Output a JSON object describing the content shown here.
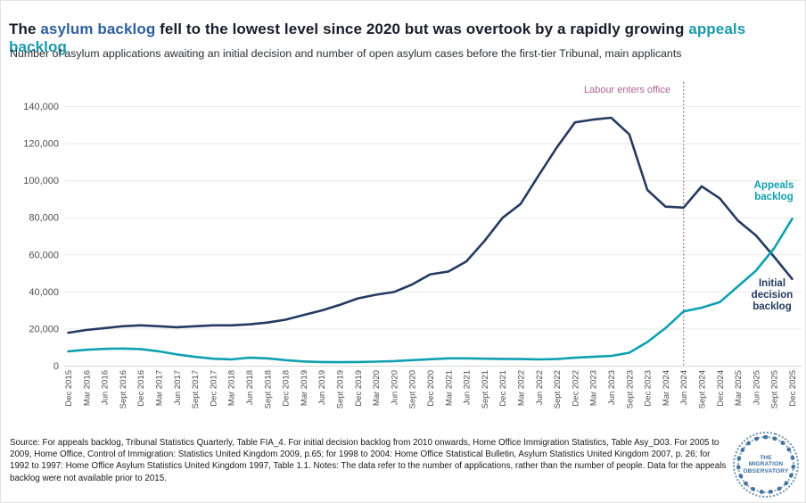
{
  "header": {
    "title_parts": [
      {
        "text": "The ",
        "style": "dark"
      },
      {
        "text": "asylum backlog",
        "style": "blue"
      },
      {
        "text": " fell to the lowest level since 2020 but was overtook by a rapidly growing ",
        "style": "dark"
      },
      {
        "text": "appeals backlog",
        "style": "teal"
      }
    ],
    "subtitle": "Number of asylum applications awaiting an initial decision and number of open asylum cases before the first-tier Tribunal, main applicants"
  },
  "chart_data": {
    "type": "line",
    "x": [
      "Dec 2015",
      "Mar 2016",
      "Jun 2016",
      "Sept 2016",
      "Dec 2016",
      "Mar 2017",
      "Jun 2017",
      "Sept 2017",
      "Dec 2017",
      "Mar 2018",
      "Jun 2018",
      "Sept 2018",
      "Dec 2018",
      "Mar 2019",
      "Jun 2019",
      "Sept 2019",
      "Dec 2019",
      "Mar 2020",
      "Jun 2020",
      "Sept 2020",
      "Dec 2020",
      "Mar 2021",
      "Jun 2021",
      "Sept 2021",
      "Dec 2021",
      "Mar 2022",
      "Jun 2022",
      "Sept 2022",
      "Dec 2022",
      "Mar 2023",
      "Jun 2023",
      "Sept 2023",
      "Dec 2023",
      "Mar 2024",
      "Jun 2024",
      "Sept 2024",
      "Dec 2024",
      "Mar 2025",
      "Jun 2025",
      "Sept 2025",
      "Dec 2025"
    ],
    "series": [
      {
        "id": "initial-decision-backlog",
        "name": "Initial decision backlog",
        "color": "#243a60",
        "values": [
          18000,
          19500,
          20500,
          21500,
          22000,
          21500,
          21000,
          21500,
          22000,
          22000,
          22500,
          23500,
          25000,
          27500,
          30000,
          33000,
          36500,
          38500,
          40000,
          44000,
          49500,
          51000,
          56500,
          67500,
          80000,
          87500,
          103000,
          118000,
          131500,
          133000,
          134000,
          125000,
          95000,
          86000,
          85500,
          97000,
          90500,
          78500,
          70500,
          59000,
          47000
        ]
      },
      {
        "id": "appeals-backlog",
        "name": "Appeals backlog",
        "color": "#0fa0b0",
        "values": [
          8000,
          8800,
          9300,
          9500,
          9200,
          8000,
          6300,
          5000,
          4000,
          3600,
          4500,
          4200,
          3200,
          2500,
          2200,
          2100,
          2200,
          2400,
          2700,
          3200,
          3700,
          4200,
          4200,
          4000,
          3900,
          3800,
          3600,
          3800,
          4500,
          5000,
          5500,
          7200,
          13000,
          20500,
          29500,
          31500,
          34500,
          43000,
          51500,
          63500,
          79500
        ]
      }
    ],
    "ylim": [
      0,
      140000
    ],
    "ytick_step": 20000,
    "yticks_labels": [
      "0",
      "20,000",
      "40,000",
      "60,000",
      "80,000",
      "100,000",
      "120,000",
      "140,000"
    ],
    "grid": "horizontal",
    "legend_position": "right-inline",
    "annotation": {
      "text": "Labour enters office",
      "x_label": "Jun 2024",
      "x_index": 34,
      "color": "#ad6392"
    },
    "series_labels": {
      "appeals": "Appeals backlog",
      "initial": "Initial decision backlog"
    }
  },
  "footer": {
    "source_text": "Source: For appeals backlog, Tribunal Statistics Quarterly, Table FIA_4. For initial decision backlog from 2010 onwards, Home Office Immigration Statistics, Table Asy_D03. For 2005 to 2009, Home Office, Control of Immigration: Statistics United Kingdom 2009, p.65; for 1998 to 2004: Home Office Statistical Bulletin, Asylum Statistics United Kingdom 2007, p. 26; for 1992 to 1997: Home Office Asylum Statistics United Kingdom 1997, Table 1.1. Notes: The data refer to the number of applications, rather than the number of people. Data for the appeals backlog were not available prior to 2015.",
    "logo_text_lines": [
      "THE",
      "MIGRATION",
      "OBSERVATORY"
    ]
  },
  "colors": {
    "initial_decision_line": "#243a60",
    "appeals_line": "#0fa0b0",
    "title_highlight_blue": "#2e5f9e",
    "title_highlight_teal": "#1a9aab",
    "annotation_pink": "#ad6392",
    "axis_text": "#4e4e4e",
    "gridline": "#e9e9e9",
    "logo_blue": "#3f75a2"
  }
}
